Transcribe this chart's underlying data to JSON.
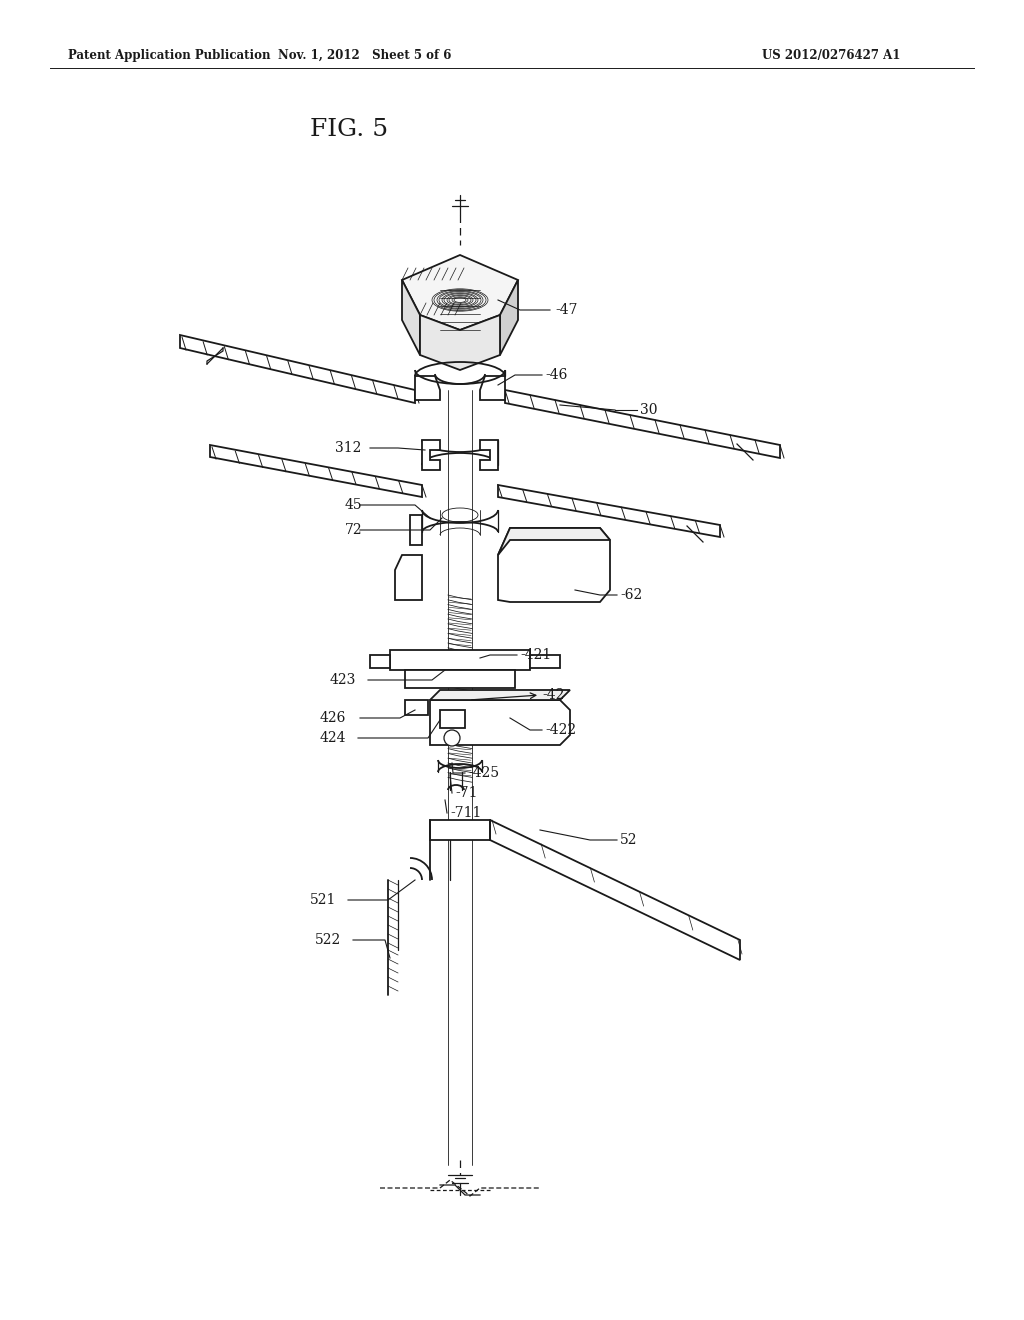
{
  "header_left": "Patent Application Publication",
  "header_mid": "Nov. 1, 2012   Sheet 5 of 6",
  "header_right": "US 2012/0276427 A1",
  "fig_title": "FIG. 5",
  "bg_color": "#ffffff",
  "line_color": "#1a1a1a",
  "lw": 1.3,
  "fig_w": 10.24,
  "fig_h": 13.2,
  "dpi": 100
}
